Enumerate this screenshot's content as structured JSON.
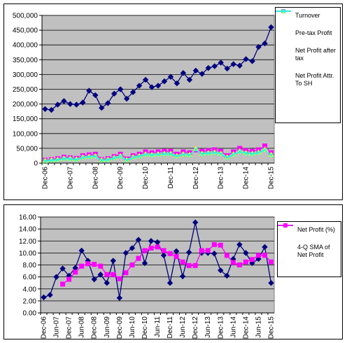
{
  "chart_data": [
    {
      "type": "line",
      "categories": [
        "Dec-06",
        null,
        null,
        null,
        "Dec-07",
        null,
        null,
        null,
        "Dec-08",
        null,
        null,
        null,
        "Dec-09",
        null,
        null,
        null,
        "Dec-10",
        null,
        null,
        null,
        "Dec-11",
        null,
        null,
        null,
        "Dec-12",
        null,
        null,
        null,
        "Dec-13",
        null,
        null,
        null,
        "Dec-14",
        null,
        null,
        null,
        "Dec-15"
      ],
      "ylim": [
        0,
        500000
      ],
      "yticks": [
        0,
        {
          "value": 50000,
          "label": "50,000"
        },
        {
          "value": 100000,
          "label": "100,000"
        },
        {
          "value": 150000,
          "label": "150,000"
        },
        {
          "value": 200000,
          "label": "200,000"
        },
        {
          "value": 250000,
          "label": "250,000"
        },
        {
          "value": 300000,
          "label": "300,000"
        },
        {
          "value": 350000,
          "label": "350,000"
        },
        {
          "value": 400000,
          "label": "400,000"
        },
        {
          "value": 450000,
          "label": "450,000"
        },
        {
          "value": 500000,
          "label": "500,000"
        }
      ],
      "grid": true,
      "series": [
        {
          "name": "Turnover",
          "color": "#000080",
          "marker": "diamond",
          "values": [
            183000,
            180000,
            198000,
            210000,
            200000,
            198000,
            205000,
            245000,
            230000,
            187000,
            203000,
            235000,
            250000,
            218000,
            240000,
            262000,
            282000,
            257000,
            262000,
            277000,
            292000,
            270000,
            305000,
            282000,
            313000,
            302000,
            322000,
            328000,
            340000,
            320000,
            335000,
            330000,
            352000,
            345000,
            393000,
            405000,
            460000
          ]
        },
        {
          "name": "Pre-tax Profit",
          "color": "#ff00ff",
          "marker": "square",
          "values": [
            10000,
            12000,
            15000,
            20000,
            18000,
            16000,
            25000,
            28000,
            30000,
            12000,
            15000,
            22000,
            30000,
            14000,
            25000,
            30000,
            38000,
            35000,
            38000,
            40000,
            40000,
            30000,
            38000,
            35000,
            45000,
            40000,
            42000,
            45000,
            40000,
            25000,
            38000,
            50000,
            42000,
            40000,
            45000,
            58000,
            35000
          ]
        },
        {
          "name": "Net Profit after tax",
          "color": "#ffff00",
          "marker": "triangle",
          "values": [
            8000,
            10000,
            12000,
            16000,
            15000,
            13000,
            20000,
            22000,
            24000,
            10000,
            12000,
            18000,
            24000,
            11000,
            20000,
            24000,
            30000,
            28000,
            30000,
            32000,
            32000,
            24000,
            30000,
            28000,
            48000,
            32000,
            34000,
            36000,
            32000,
            20000,
            30000,
            40000,
            34000,
            32000,
            36000,
            46000,
            28000
          ]
        },
        {
          "name": "Net Profit Attr. To SH",
          "color": "#00ffff",
          "marker": "x",
          "values": [
            7000,
            9000,
            11000,
            15000,
            14000,
            12000,
            19000,
            21000,
            23000,
            9000,
            11000,
            17000,
            23000,
            10000,
            19000,
            23000,
            29000,
            27000,
            29000,
            31000,
            31000,
            23000,
            29000,
            27000,
            46000,
            31000,
            33000,
            35000,
            31000,
            19000,
            29000,
            39000,
            33000,
            31000,
            35000,
            45000,
            27000
          ]
        }
      ]
    },
    {
      "type": "line",
      "categories": [
        "Dec-06",
        null,
        "Jun-07",
        null,
        "Dec-07",
        null,
        "Jun-08",
        null,
        "Dec-08",
        null,
        "Jun-09",
        null,
        "Dec-09",
        null,
        "Jun-10",
        null,
        "Dec-10",
        null,
        "Jun-11",
        null,
        "Dec-11",
        null,
        "Jun-12",
        null,
        "Dec-12",
        null,
        "Jun-13",
        null,
        "Dec-13",
        null,
        "Jun-14",
        null,
        "Dec-14",
        null,
        "Jun-15",
        null,
        "Dec-15"
      ],
      "ylim": [
        0,
        16
      ],
      "yticks": [
        {
          "value": 0,
          "label": "0.00"
        },
        {
          "value": 2,
          "label": "2.00"
        },
        {
          "value": 4,
          "label": "4.00"
        },
        {
          "value": 6,
          "label": "6.00"
        },
        {
          "value": 8,
          "label": "8.00"
        },
        {
          "value": 10,
          "label": "10.00"
        },
        {
          "value": 12,
          "label": "12.00"
        },
        {
          "value": 14,
          "label": "14.00"
        },
        {
          "value": 16,
          "label": "16.00"
        }
      ],
      "grid": true,
      "series": [
        {
          "name": "Net Profit (%)",
          "color": "#000080",
          "marker": "diamond",
          "values": [
            2.6,
            3.0,
            6.0,
            7.4,
            6.2,
            7.5,
            10.4,
            8.7,
            5.6,
            6.4,
            5.0,
            8.7,
            2.5,
            10.0,
            10.8,
            12.2,
            8.3,
            12.0,
            11.8,
            9.6,
            5.0,
            10.3,
            6.1,
            10.1,
            15.1,
            10.0,
            10.0,
            9.9,
            7.1,
            6.2,
            9.0,
            11.4,
            10.0,
            8.3,
            9.0,
            11.0,
            5.0
          ]
        },
        {
          "name": "4-Q SMA of Net Profit",
          "color": "#ff00ff",
          "marker": "square",
          "values": [
            null,
            null,
            null,
            4.8,
            5.6,
            6.8,
            7.8,
            8.2,
            8.1,
            7.8,
            6.4,
            6.4,
            5.7,
            6.7,
            8.0,
            9.1,
            10.4,
            10.8,
            11.0,
            10.4,
            9.9,
            9.4,
            8.5,
            7.9,
            7.9,
            10.4,
            10.4,
            11.4,
            11.3,
            9.6,
            8.4,
            8.0,
            8.5,
            8.9,
            9.6,
            9.6,
            8.5
          ]
        }
      ]
    }
  ]
}
